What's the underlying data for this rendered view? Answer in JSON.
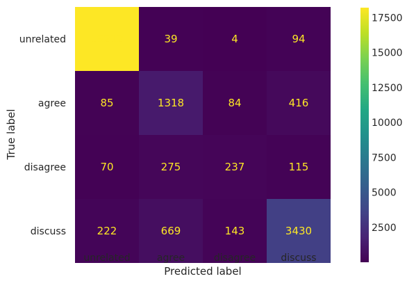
{
  "chart_data": {
    "type": "heatmap",
    "title": "",
    "xlabel": "Predicted label",
    "ylabel": "True label",
    "x_categories": [
      "unrelated",
      "agree",
      "disagree",
      "discuss"
    ],
    "y_categories": [
      "unrelated",
      "agree",
      "disagree",
      "discuss"
    ],
    "values": [
      [
        18212,
        39,
        4,
        94
      ],
      [
        85,
        1318,
        84,
        416
      ],
      [
        70,
        275,
        237,
        115
      ],
      [
        222,
        669,
        143,
        3430
      ]
    ],
    "colormap": "viridis",
    "value_range": [
      4,
      18212
    ],
    "colorbar_ticks": [
      2500,
      5000,
      7500,
      10000,
      12500,
      15000,
      17500
    ],
    "grid": false,
    "annotation_color": "#fde725"
  }
}
